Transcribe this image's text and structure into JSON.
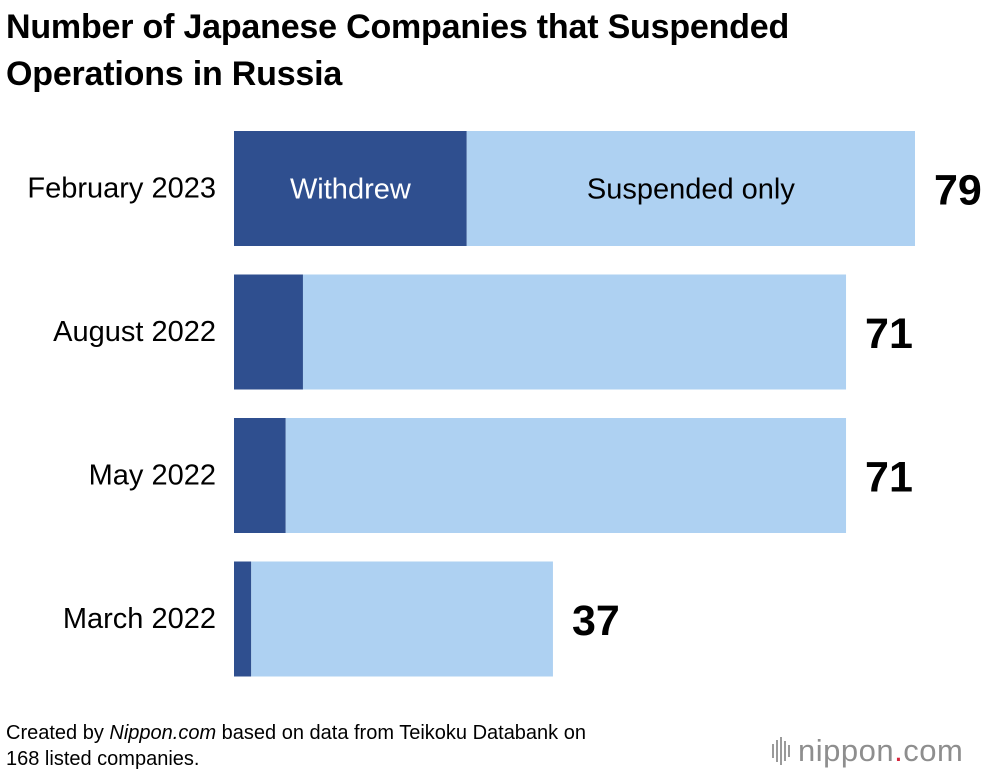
{
  "title_lines": [
    "Number of Japanese Companies that Suspended",
    "Operations in Russia"
  ],
  "colors": {
    "withdrew": "#2f4f8f",
    "suspended": "#aed1f2",
    "withdrew_label_text": "#ffffff",
    "suspended_label_text": "#000000"
  },
  "chart_data": {
    "type": "bar",
    "orientation": "horizontal",
    "stacked": true,
    "categories": [
      "February 2023",
      "August 2022",
      "May 2022",
      "March 2022"
    ],
    "series": [
      {
        "name": "Withdrew",
        "values": [
          27,
          8,
          6,
          2
        ]
      },
      {
        "name": "Suspended only",
        "values": [
          52,
          63,
          65,
          35
        ]
      }
    ],
    "totals": [
      79,
      71,
      71,
      37
    ],
    "title": "Number of Japanese Companies that Suspended Operations in Russia",
    "xlabel": "",
    "ylabel": "",
    "xlim": [
      0,
      79
    ]
  },
  "footer": {
    "line1_prefix": "Created by ",
    "line1_italic": "Nippon.com",
    "line1_suffix": " based on data from Teikoku Databank on",
    "line2": "168 listed companies."
  },
  "logo": {
    "text_main": "nippon",
    "text_dot": ".",
    "text_end": "com"
  }
}
